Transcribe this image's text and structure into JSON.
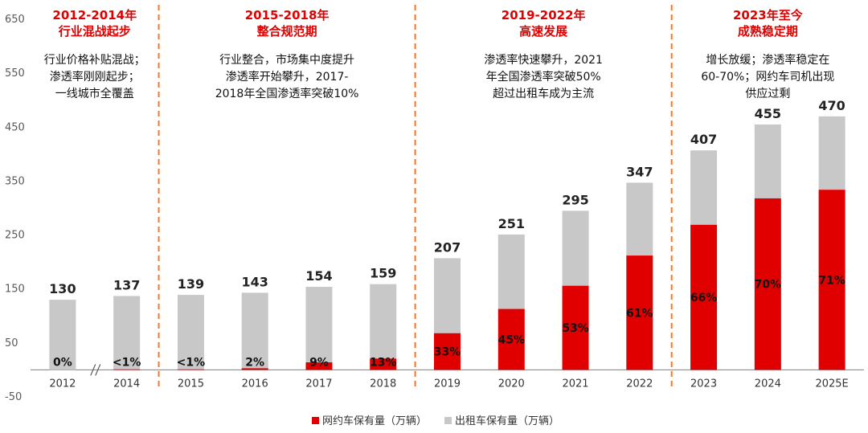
{
  "chart_data": {
    "type": "bar",
    "stacked": true,
    "categories": [
      "2012",
      "2014",
      "2015",
      "2016",
      "2017",
      "2018",
      "2019",
      "2020",
      "2021",
      "2022",
      "2023",
      "2024",
      "2025E"
    ],
    "ylim": [
      -50,
      650
    ],
    "yticks": [
      -50,
      50,
      150,
      250,
      350,
      450,
      550,
      650
    ],
    "series": [
      {
        "name": "网约车保有量（万辆）",
        "color": "#e00000",
        "values": [
          0,
          1,
          1,
          3,
          14,
          21,
          68,
          113,
          156,
          212,
          269,
          318,
          334
        ]
      },
      {
        "name": "出租车保有量（万辆）",
        "color": "#c8c8c8",
        "values": [
          130,
          136,
          138,
          140,
          140,
          138,
          139,
          138,
          139,
          135,
          138,
          137,
          136
        ]
      }
    ],
    "totals": [
      "130",
      "137",
      "139",
      "143",
      "154",
      "159",
      "207",
      "251",
      "295",
      "347",
      "407",
      "455",
      "470"
    ],
    "share_labels": [
      "0%",
      "<1%",
      "<1%",
      "2%",
      "9%",
      "13%",
      "33%",
      "45%",
      "53%",
      "61%",
      "66%",
      "70%",
      "71%"
    ],
    "axis_break_between": [
      "2012",
      "2014"
    ],
    "periods": [
      {
        "title": [
          "2012-2014年",
          "行业混战起步"
        ],
        "desc": [
          "行业价格补贴混战；",
          "渗透率刚刚起步；",
          "一线城市全覆盖"
        ]
      },
      {
        "title": [
          "2015-2018年",
          "整合规范期"
        ],
        "desc": [
          "行业整合，市场集中度提升",
          "渗透率开始攀升，2017-",
          "2018年全国渗透率突破10%"
        ]
      },
      {
        "title": [
          "2019-2022年",
          "高速发展"
        ],
        "desc": [
          "渗透率快速攀升，2021",
          "年全国渗透率突破50%",
          "超过出租车成为主流"
        ]
      },
      {
        "title": [
          "2023年至今",
          "成熟稳定期"
        ],
        "desc": [
          "增长放缓；渗透率稳定在",
          "60-70%；网约车司机出现",
          "供应过剩"
        ]
      }
    ],
    "grid": false,
    "legend_position": "bottom-center"
  }
}
